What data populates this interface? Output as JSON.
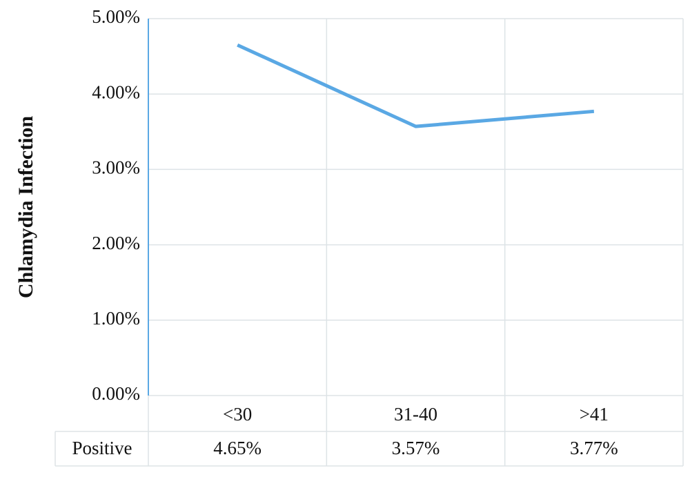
{
  "chart_data": {
    "type": "line",
    "ylabel": "Chlamydia Infection",
    "categories": [
      "<30",
      "31-40",
      ">41"
    ],
    "series": [
      {
        "name": "Positive",
        "color": "#5aa8e4",
        "values": [
          4.65,
          3.57,
          3.77
        ],
        "value_labels": [
          "4.65%",
          "3.57%",
          "3.77%"
        ]
      }
    ],
    "ylim": [
      0,
      5
    ],
    "yticks": [
      {
        "value": 0,
        "label": "0.00%"
      },
      {
        "value": 1,
        "label": "1.00%"
      },
      {
        "value": 2,
        "label": "2.00%"
      },
      {
        "value": 3,
        "label": "3.00%"
      },
      {
        "value": 4,
        "label": "4.00%"
      },
      {
        "value": 5,
        "label": "5.00%"
      }
    ],
    "grid": true,
    "data_table": true
  }
}
